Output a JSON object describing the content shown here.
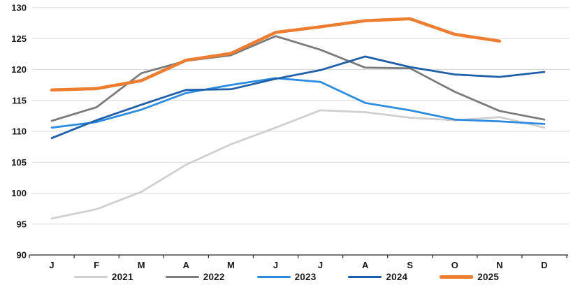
{
  "chart_data": {
    "type": "line",
    "title": "",
    "xlabel": "",
    "ylabel": "",
    "x_categories": [
      "J",
      "F",
      "M",
      "A",
      "M",
      "J",
      "J",
      "A",
      "S",
      "O",
      "N",
      "D"
    ],
    "y_ticks": [
      90,
      95,
      100,
      105,
      110,
      115,
      120,
      125,
      130
    ],
    "ylim": [
      90,
      130
    ],
    "grid": "horizontal",
    "gridline_color": "#D9D9D9",
    "axis_color": "#262626",
    "legend_position": "bottom",
    "series": [
      {
        "name": "2021",
        "color": "#CFCFCF",
        "stroke_width": 2.75,
        "values": [
          95.9,
          97.4,
          100.2,
          104.6,
          107.9,
          110.6,
          113.4,
          113.1,
          112.2,
          111.8,
          112.3,
          110.6
        ]
      },
      {
        "name": "2022",
        "color": "#7A7A7A",
        "stroke_width": 2.75,
        "values": [
          111.7,
          113.9,
          119.4,
          121.4,
          122.3,
          125.4,
          123.2,
          120.3,
          120.2,
          116.4,
          113.3,
          111.9
        ]
      },
      {
        "name": "2023",
        "color": "#2B8BE0",
        "stroke_width": 2.75,
        "values": [
          110.6,
          111.5,
          113.5,
          116.2,
          117.5,
          118.6,
          118.0,
          114.6,
          113.4,
          111.9,
          111.6,
          111.2
        ]
      },
      {
        "name": "2024",
        "color": "#1F5FA9",
        "stroke_width": 2.75,
        "values": [
          108.9,
          111.8,
          114.3,
          116.7,
          116.8,
          118.5,
          119.9,
          122.1,
          120.4,
          119.2,
          118.8,
          119.6
        ]
      },
      {
        "name": "2025",
        "color": "#ED7D31",
        "stroke_width": 4.5,
        "values": [
          116.7,
          116.9,
          118.2,
          121.5,
          122.6,
          126.0,
          126.9,
          127.9,
          128.2,
          125.7,
          124.6
        ]
      }
    ]
  }
}
